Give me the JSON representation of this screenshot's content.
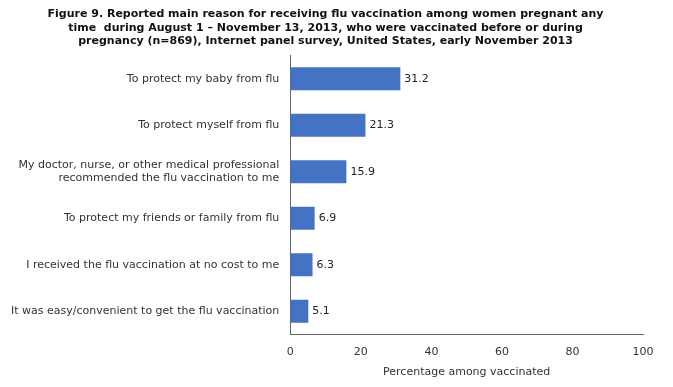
{
  "chart_data": {
    "type": "bar",
    "orientation": "horizontal",
    "title": "Figure 9. Reported main reason for receiving flu vaccination among women pregnant any\ntime  during August 1 – November 13, 2013, who were vaccinated before or during\npregnancy (n=869), Internet panel survey, United States, early November 2013",
    "categories": [
      "It was easy/convenient to get the flu vaccination",
      "I received the flu vaccination at no cost to me",
      "To protect my friends or family from flu",
      "My doctor, nurse, or other medical professional\nrecommended the flu vaccination to me",
      "To protect myself from flu",
      "To protect my baby from flu"
    ],
    "values": [
      5.1,
      6.3,
      6.9,
      15.9,
      21.3,
      31.2
    ],
    "color": "#4472C4",
    "xlabel": "Percentage among vaccinated",
    "xlim": [
      0,
      100
    ],
    "xticks": [
      0,
      20,
      40,
      60,
      80,
      100
    ],
    "grid": false,
    "data_labels": true
  }
}
